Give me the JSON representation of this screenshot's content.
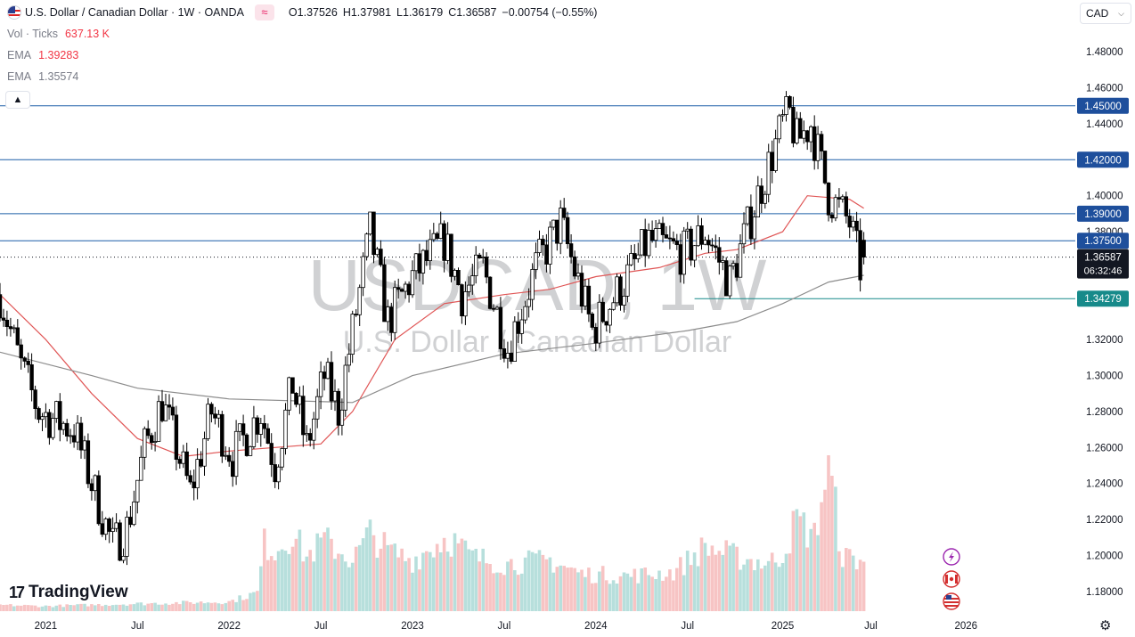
{
  "header": {
    "title": "U.S. Dollar / Canadian Dollar · 1W · OANDA",
    "indicator_icon": "wave-icon",
    "ohlc": [
      {
        "k": "O",
        "v": "1.37526"
      },
      {
        "k": "H",
        "v": "1.37981"
      },
      {
        "k": "L",
        "v": "1.36179"
      },
      {
        "k": "C",
        "v": "1.36587"
      },
      {
        "k": "",
        "v": "−0.00754 (−0.55%)"
      }
    ],
    "currency": "CAD"
  },
  "indicators": {
    "vol_label": "Vol · Ticks",
    "vol_value": "637.13 K",
    "ema1_label": "EMA",
    "ema1_value": "1.39283",
    "ema2_label": "EMA",
    "ema2_value": "1.35574"
  },
  "watermark": {
    "symbol": "USDCAD, 1W",
    "name": "U.S. Dollar / Canadian Dollar"
  },
  "logo_text": "TradingView",
  "colors": {
    "up": "#ffffff",
    "down": "#000000",
    "ema_fast": "#e05656",
    "ema_slow": "#8c8c8c",
    "hline": "#1d5fa8",
    "hline_support": "#178a8a",
    "label_bg": "#1e4f9c",
    "vol_up": "#b7dfdc",
    "vol_down": "#f7c4c4",
    "last_price_bg": "#131722"
  },
  "chart_data": {
    "type": "candlestick",
    "interval": "1W",
    "ylim": [
      1.17,
      1.49
    ],
    "x_range": [
      "2020-10-05",
      "2026-08-10"
    ],
    "y_ticks": [
      "1.48000",
      "1.46000",
      "1.44000",
      "1.40000",
      "1.38000",
      "1.32000",
      "1.30000",
      "1.28000",
      "1.26000",
      "1.24000",
      "1.22000",
      "1.20000",
      "1.18000"
    ],
    "x_ticks": [
      {
        "label": "2021",
        "date": "2021-01-04"
      },
      {
        "label": "Jul",
        "date": "2021-07-05"
      },
      {
        "label": "2022",
        "date": "2022-01-03"
      },
      {
        "label": "Jul",
        "date": "2022-07-04"
      },
      {
        "label": "2023",
        "date": "2023-01-02"
      },
      {
        "label": "Jul",
        "date": "2023-07-03"
      },
      {
        "label": "2024",
        "date": "2024-01-01"
      },
      {
        "label": "Jul",
        "date": "2024-07-01"
      },
      {
        "label": "2025",
        "date": "2025-01-06"
      },
      {
        "label": "Jul",
        "date": "2025-06-30"
      },
      {
        "label": "2026",
        "date": "2026-01-05"
      }
    ],
    "price_anchors": [
      [
        "2020-10-05",
        1.345
      ],
      [
        "2020-11-16",
        1.305
      ],
      [
        "2020-12-21",
        1.28
      ],
      [
        "2021-03-01",
        1.27
      ],
      [
        "2021-05-17",
        1.205
      ],
      [
        "2021-06-14",
        1.215
      ],
      [
        "2021-07-19",
        1.26
      ],
      [
        "2021-08-23",
        1.285
      ],
      [
        "2021-10-18",
        1.235
      ],
      [
        "2021-11-29",
        1.28
      ],
      [
        "2022-01-10",
        1.255
      ],
      [
        "2022-03-07",
        1.28
      ],
      [
        "2022-04-04",
        1.25
      ],
      [
        "2022-05-09",
        1.295
      ],
      [
        "2022-06-06",
        1.26
      ],
      [
        "2022-07-11",
        1.3
      ],
      [
        "2022-08-08",
        1.28
      ],
      [
        "2022-10-10",
        1.38
      ],
      [
        "2022-11-14",
        1.33
      ],
      [
        "2023-01-02",
        1.355
      ],
      [
        "2023-03-06",
        1.375
      ],
      [
        "2023-04-10",
        1.345
      ],
      [
        "2023-05-22",
        1.36
      ],
      [
        "2023-07-10",
        1.315
      ],
      [
        "2023-09-04",
        1.36
      ],
      [
        "2023-10-23",
        1.385
      ],
      [
        "2023-12-25",
        1.325
      ],
      [
        "2024-03-04",
        1.355
      ],
      [
        "2024-04-15",
        1.375
      ],
      [
        "2024-06-24",
        1.368
      ],
      [
        "2024-08-05",
        1.38
      ],
      [
        "2024-09-23",
        1.352
      ],
      [
        "2024-11-18",
        1.4
      ],
      [
        "2025-01-06",
        1.44
      ],
      [
        "2025-01-20",
        1.445
      ],
      [
        "2025-02-03",
        1.43
      ],
      [
        "2025-03-03",
        1.44
      ],
      [
        "2025-04-07",
        1.4
      ],
      [
        "2025-05-19",
        1.385
      ],
      [
        "2025-06-09",
        1.36
      ],
      [
        "2025-06-16",
        1.37
      ]
    ],
    "last_candle": {
      "date": "2025-06-16",
      "open": 1.37526,
      "high": 1.37981,
      "low": 1.36179,
      "close": 1.36587
    },
    "ema_fast": {
      "label": "EMA",
      "value": 1.39283,
      "points": [
        [
          "2020-10-05",
          1.345
        ],
        [
          "2021-01-04",
          1.32
        ],
        [
          "2021-04-05",
          1.29
        ],
        [
          "2021-07-05",
          1.265
        ],
        [
          "2021-10-04",
          1.255
        ],
        [
          "2022-01-03",
          1.258
        ],
        [
          "2022-07-04",
          1.262
        ],
        [
          "2022-09-05",
          1.28
        ],
        [
          "2022-11-28",
          1.32
        ],
        [
          "2023-03-06",
          1.34
        ],
        [
          "2023-07-03",
          1.345
        ],
        [
          "2023-10-02",
          1.348
        ],
        [
          "2024-01-01",
          1.355
        ],
        [
          "2024-05-06",
          1.36
        ],
        [
          "2024-08-05",
          1.368
        ],
        [
          "2024-10-07",
          1.37
        ],
        [
          "2025-01-06",
          1.38
        ],
        [
          "2025-02-24",
          1.4
        ],
        [
          "2025-05-19",
          1.398
        ],
        [
          "2025-06-16",
          1.393
        ]
      ]
    },
    "ema_slow": {
      "label": "EMA",
      "value": 1.35574,
      "points": [
        [
          "2020-10-05",
          1.313
        ],
        [
          "2021-04-05",
          1.3
        ],
        [
          "2021-07-05",
          1.293
        ],
        [
          "2022-01-03",
          1.287
        ],
        [
          "2022-09-05",
          1.285
        ],
        [
          "2023-01-02",
          1.3
        ],
        [
          "2023-07-03",
          1.312
        ],
        [
          "2024-01-01",
          1.318
        ],
        [
          "2024-07-01",
          1.325
        ],
        [
          "2024-10-07",
          1.33
        ],
        [
          "2025-01-06",
          1.34
        ],
        [
          "2025-04-07",
          1.352
        ],
        [
          "2025-06-16",
          1.35574
        ]
      ]
    },
    "horizontal_lines": [
      {
        "value": 1.45,
        "label": "1.45000",
        "start": "2020-10-05",
        "kind": "resistance"
      },
      {
        "value": 1.42,
        "label": "1.42000",
        "start": "2020-10-05",
        "kind": "resistance"
      },
      {
        "value": 1.39,
        "label": "1.39000",
        "start": "2020-10-05",
        "kind": "resistance"
      },
      {
        "value": 1.375,
        "label": "1.37500",
        "start": "2020-10-05",
        "kind": "resistance"
      },
      {
        "value": 1.34279,
        "label": "1.34279",
        "start": "2024-07-15",
        "kind": "support"
      }
    ],
    "last_price": {
      "value": 1.36587,
      "label": "1.36587",
      "countdown": "06:32:46"
    },
    "volume": {
      "label": "Vol · Ticks",
      "value": "637.13 K",
      "max_ticks": 1000,
      "points": [
        [
          "2020-10-05",
          18
        ],
        [
          "2021-01-04",
          15
        ],
        [
          "2021-07-05",
          22
        ],
        [
          "2022-01-03",
          28
        ],
        [
          "2022-02-28",
          55
        ],
        [
          "2022-03-14",
          200
        ],
        [
          "2022-04-04",
          180
        ],
        [
          "2022-05-09",
          230
        ],
        [
          "2022-06-06",
          160
        ],
        [
          "2022-07-11",
          210
        ],
        [
          "2022-09-05",
          150
        ],
        [
          "2022-10-10",
          230
        ],
        [
          "2022-11-14",
          180
        ],
        [
          "2023-01-02",
          150
        ],
        [
          "2023-03-13",
          220
        ],
        [
          "2023-05-01",
          160
        ],
        [
          "2023-07-03",
          140
        ],
        [
          "2023-10-02",
          150
        ],
        [
          "2023-12-04",
          110
        ],
        [
          "2024-03-04",
          105
        ],
        [
          "2024-06-03",
          115
        ],
        [
          "2024-08-05",
          190
        ],
        [
          "2024-10-07",
          160
        ],
        [
          "2024-12-09",
          140
        ],
        [
          "2025-01-06",
          170
        ],
        [
          "2025-02-03",
          270
        ],
        [
          "2025-03-10",
          220
        ],
        [
          "2025-04-07",
          440
        ],
        [
          "2025-05-05",
          160
        ],
        [
          "2025-06-16",
          150
        ]
      ]
    }
  }
}
